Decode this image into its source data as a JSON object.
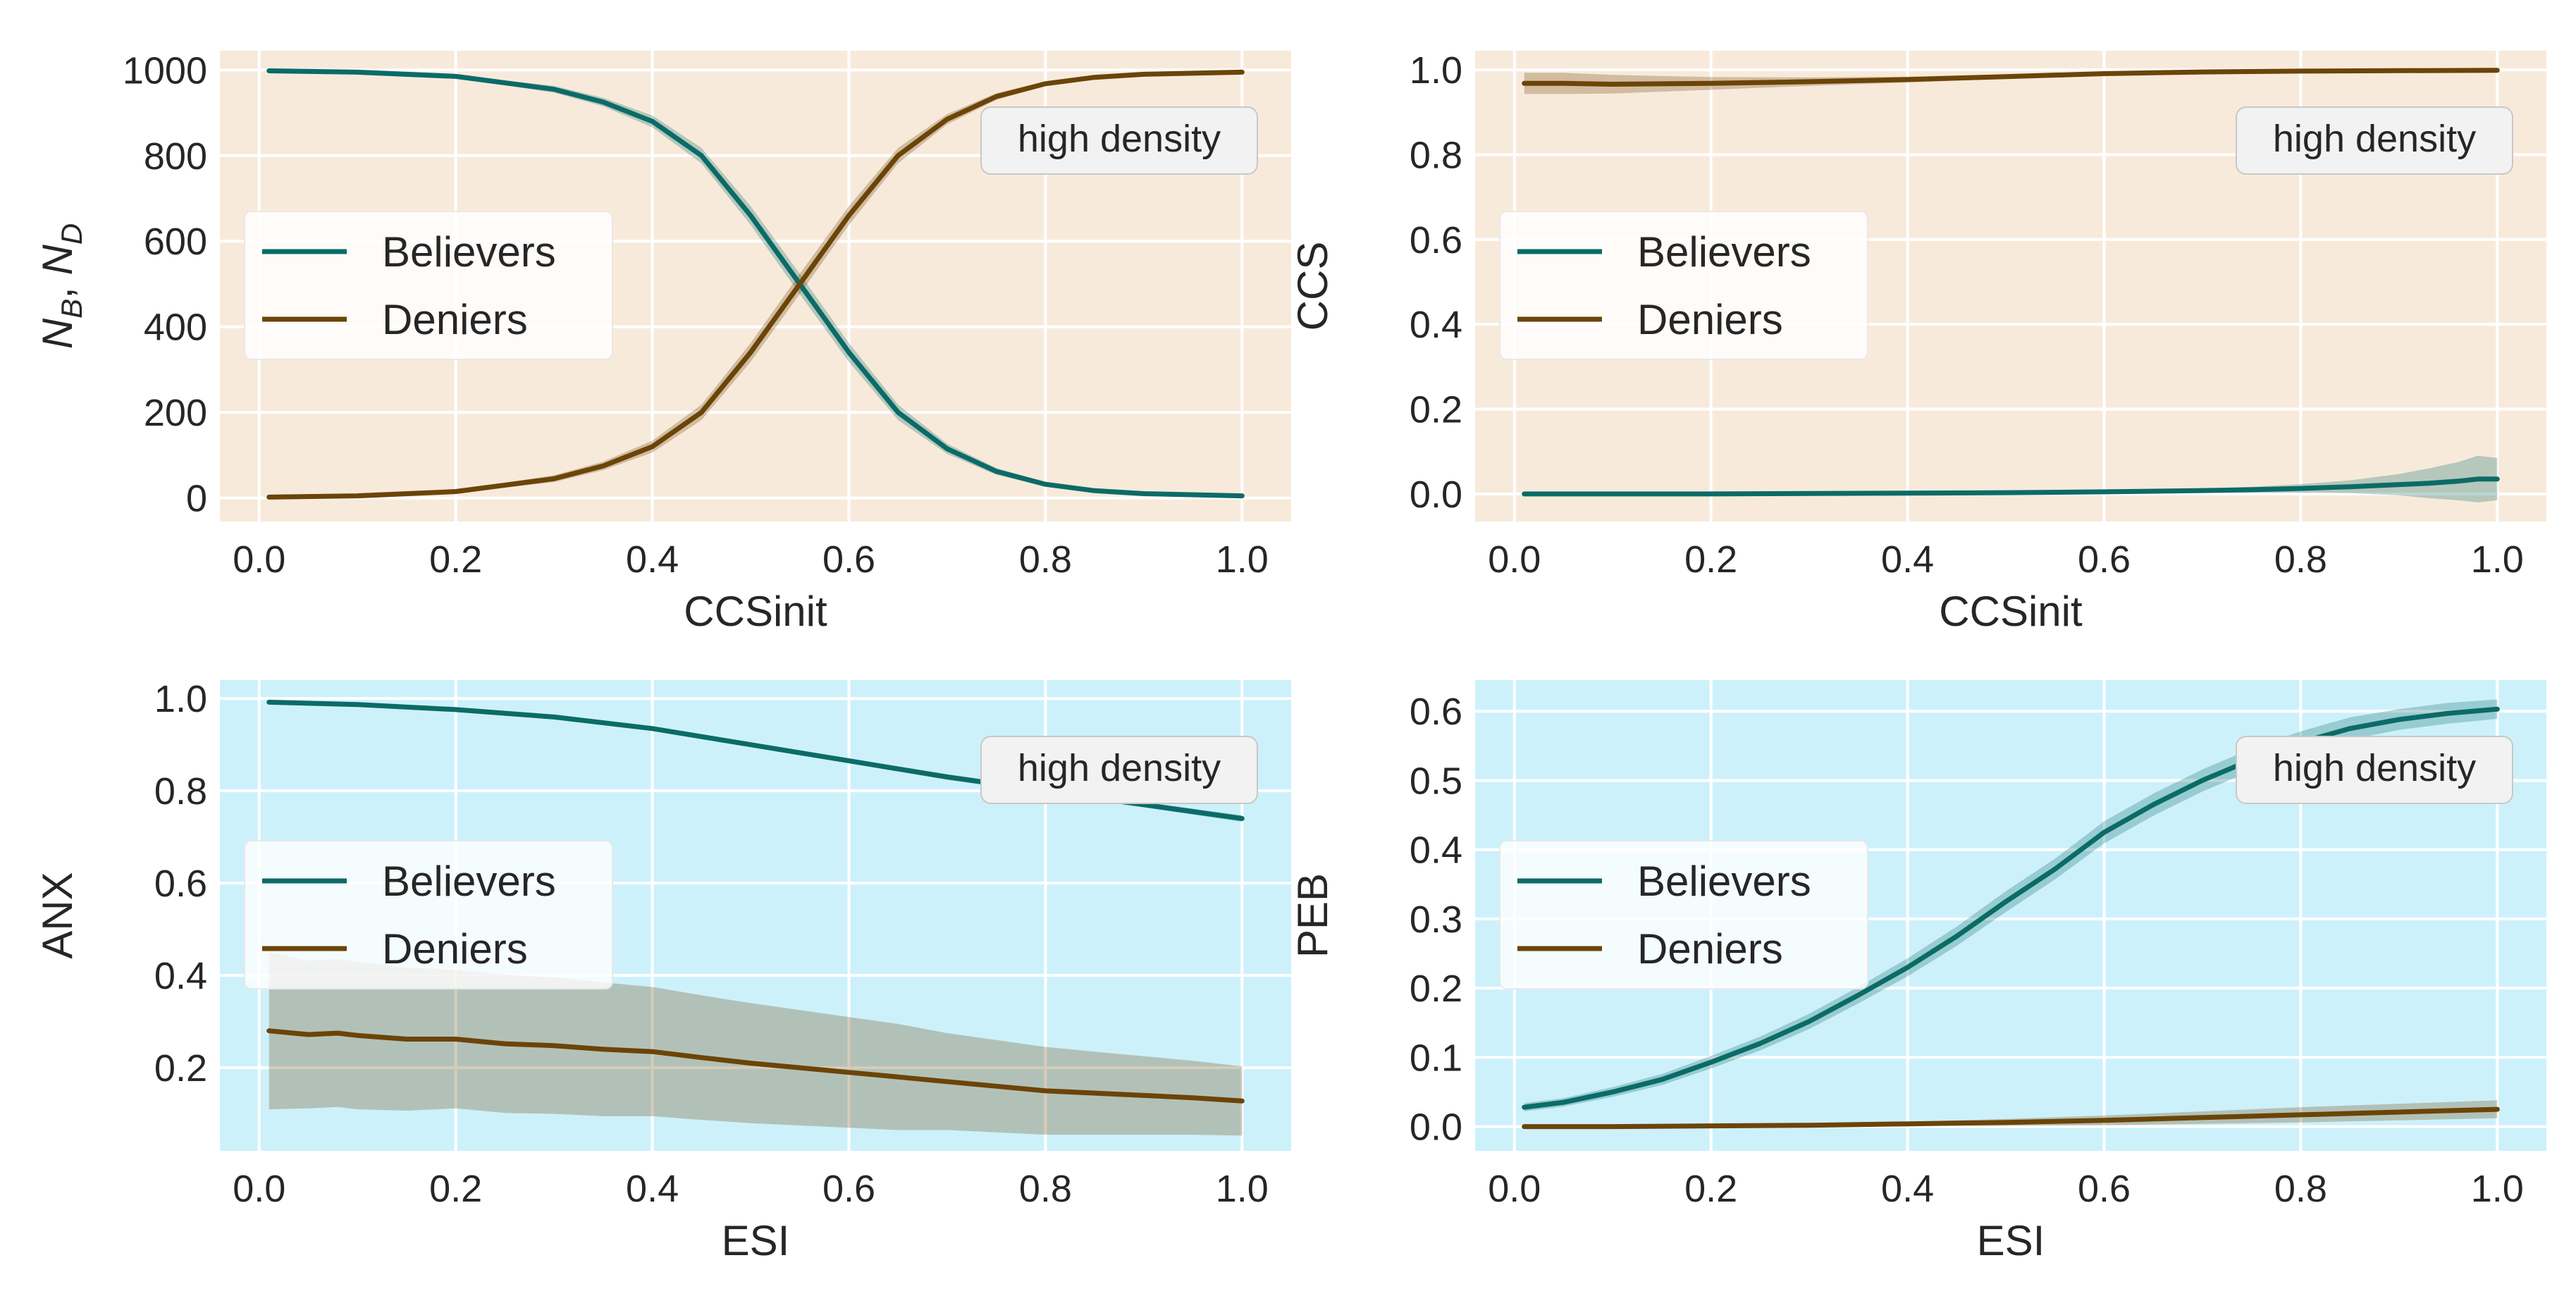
{
  "colors": {
    "believers": "#0b6b67",
    "deniers": "#6b4408",
    "bg_ccsinit": "#f8eadb",
    "bg_esi": "#cdf1fb",
    "annotation_bg": "#f2f2f2"
  },
  "chart_data": [
    {
      "type": "line",
      "panel": "top-left",
      "xlabel": "CCSinit",
      "ylabel_parts": [
        "N",
        "B",
        ", ",
        "N",
        "D"
      ],
      "xlim": [
        -0.04,
        1.05
      ],
      "ylim": [
        -55,
        1045
      ],
      "xticks": [
        0.0,
        0.2,
        0.4,
        0.6,
        0.8,
        1.0
      ],
      "xtick_labels": [
        "0.0",
        "0.2",
        "0.4",
        "0.6",
        "0.8",
        "1.0"
      ],
      "yticks": [
        0,
        200,
        400,
        600,
        800,
        1000
      ],
      "ytick_labels": [
        "0",
        "200",
        "400",
        "600",
        "800",
        "1000"
      ],
      "background": "ccsinit",
      "legend": [
        "Believers",
        "Deniers"
      ],
      "legend_position": "center-left",
      "annotation": "high density",
      "series": [
        {
          "name": "Believers",
          "x": [
            0.01,
            0.1,
            0.2,
            0.3,
            0.35,
            0.4,
            0.45,
            0.5,
            0.55,
            0.6,
            0.65,
            0.7,
            0.75,
            0.8,
            0.85,
            0.9,
            1.0
          ],
          "y": [
            998,
            995,
            985,
            955,
            925,
            880,
            800,
            660,
            500,
            340,
            200,
            115,
            62,
            32,
            17,
            10,
            5
          ],
          "band": [
            0,
            1,
            3,
            8,
            10,
            14,
            18,
            22,
            24,
            22,
            18,
            12,
            8,
            5,
            3,
            2,
            1
          ]
        },
        {
          "name": "Deniers",
          "x": [
            0.01,
            0.1,
            0.2,
            0.3,
            0.35,
            0.4,
            0.45,
            0.5,
            0.55,
            0.6,
            0.65,
            0.7,
            0.75,
            0.8,
            0.85,
            0.9,
            1.0
          ],
          "y": [
            2,
            5,
            15,
            45,
            75,
            120,
            200,
            340,
            500,
            660,
            800,
            885,
            938,
            968,
            983,
            990,
            995
          ],
          "band": [
            0,
            1,
            3,
            8,
            10,
            14,
            18,
            22,
            24,
            22,
            18,
            12,
            8,
            5,
            3,
            2,
            1
          ]
        }
      ]
    },
    {
      "type": "line",
      "panel": "top-right",
      "xlabel": "CCSinit",
      "ylabel": "CCS",
      "xlim": [
        -0.04,
        1.05
      ],
      "ylim": [
        -0.065,
        1.045
      ],
      "xticks": [
        0.0,
        0.2,
        0.4,
        0.6,
        0.8,
        1.0
      ],
      "xtick_labels": [
        "0.0",
        "0.2",
        "0.4",
        "0.6",
        "0.8",
        "1.0"
      ],
      "yticks": [
        0.0,
        0.2,
        0.4,
        0.6,
        0.8,
        1.0
      ],
      "ytick_labels": [
        "0.0",
        "0.2",
        "0.4",
        "0.6",
        "0.8",
        "1.0"
      ],
      "background": "ccsinit",
      "legend": [
        "Believers",
        "Deniers"
      ],
      "legend_position": "center-left",
      "annotation": "high density",
      "series": [
        {
          "name": "Believers",
          "x": [
            0.01,
            0.1,
            0.2,
            0.3,
            0.4,
            0.5,
            0.6,
            0.7,
            0.75,
            0.8,
            0.85,
            0.9,
            0.93,
            0.96,
            0.98,
            1.0
          ],
          "y": [
            0.0,
            0.0,
            0.0,
            0.001,
            0.002,
            0.003,
            0.005,
            0.008,
            0.01,
            0.013,
            0.017,
            0.022,
            0.025,
            0.03,
            0.035,
            0.035
          ],
          "band": [
            0,
            0,
            0,
            0,
            0.001,
            0.002,
            0.003,
            0.005,
            0.007,
            0.01,
            0.015,
            0.025,
            0.035,
            0.045,
            0.055,
            0.05
          ]
        },
        {
          "name": "Deniers",
          "x": [
            0.01,
            0.05,
            0.1,
            0.2,
            0.3,
            0.4,
            0.5,
            0.6,
            0.7,
            0.8,
            0.9,
            1.0
          ],
          "y": [
            0.968,
            0.968,
            0.966,
            0.968,
            0.972,
            0.977,
            0.984,
            0.991,
            0.995,
            0.997,
            0.998,
            0.999
          ],
          "band": [
            0.025,
            0.025,
            0.022,
            0.015,
            0.01,
            0.007,
            0.005,
            0.003,
            0.002,
            0.002,
            0.001,
            0.001
          ]
        }
      ]
    },
    {
      "type": "line",
      "panel": "bottom-left",
      "xlabel": "ESI",
      "ylabel": "ANX",
      "xlim": [
        -0.04,
        1.05
      ],
      "ylim": [
        0.02,
        1.04
      ],
      "xticks": [
        0.0,
        0.2,
        0.4,
        0.6,
        0.8,
        1.0
      ],
      "xtick_labels": [
        "0.0",
        "0.2",
        "0.4",
        "0.6",
        "0.8",
        "1.0"
      ],
      "yticks": [
        0.2,
        0.4,
        0.6,
        0.8,
        1.0
      ],
      "ytick_labels": [
        "0.2",
        "0.4",
        "0.6",
        "0.8",
        "1.0"
      ],
      "background": "esi",
      "legend": [
        "Believers",
        "Deniers"
      ],
      "legend_position": "center-left",
      "annotation": "high density",
      "series": [
        {
          "name": "Believers",
          "x": [
            0.01,
            0.1,
            0.2,
            0.3,
            0.4,
            0.5,
            0.6,
            0.7,
            0.8,
            0.9,
            1.0
          ],
          "y": [
            0.992,
            0.987,
            0.976,
            0.96,
            0.935,
            0.9,
            0.865,
            0.83,
            0.8,
            0.77,
            0.74
          ],
          "band": [
            0.003,
            0.003,
            0.003,
            0.004,
            0.004,
            0.005,
            0.005,
            0.006,
            0.006,
            0.006,
            0.007
          ]
        },
        {
          "name": "Deniers",
          "x": [
            0.01,
            0.05,
            0.08,
            0.1,
            0.15,
            0.2,
            0.25,
            0.3,
            0.35,
            0.4,
            0.45,
            0.5,
            0.55,
            0.6,
            0.65,
            0.7,
            0.75,
            0.8,
            0.85,
            0.9,
            0.95,
            1.0
          ],
          "y": [
            0.28,
            0.272,
            0.275,
            0.27,
            0.262,
            0.262,
            0.252,
            0.248,
            0.24,
            0.235,
            0.222,
            0.21,
            0.2,
            0.19,
            0.18,
            0.17,
            0.16,
            0.15,
            0.145,
            0.14,
            0.135,
            0.128
          ],
          "band": [
            0.17,
            0.16,
            0.16,
            0.16,
            0.155,
            0.15,
            0.15,
            0.148,
            0.145,
            0.14,
            0.135,
            0.13,
            0.125,
            0.12,
            0.115,
            0.105,
            0.1,
            0.095,
            0.09,
            0.085,
            0.08,
            0.075
          ]
        }
      ]
    },
    {
      "type": "line",
      "panel": "bottom-right",
      "xlabel": "ESI",
      "ylabel": "PEB",
      "xlim": [
        -0.04,
        1.05
      ],
      "ylim": [
        -0.035,
        0.645
      ],
      "xticks": [
        0.0,
        0.2,
        0.4,
        0.6,
        0.8,
        1.0
      ],
      "xtick_labels": [
        "0.0",
        "0.2",
        "0.4",
        "0.6",
        "0.8",
        "1.0"
      ],
      "yticks": [
        0.0,
        0.1,
        0.2,
        0.3,
        0.4,
        0.5,
        0.6
      ],
      "ytick_labels": [
        "0.0",
        "0.1",
        "0.2",
        "0.3",
        "0.4",
        "0.5",
        "0.6"
      ],
      "background": "esi",
      "legend": [
        "Believers",
        "Deniers"
      ],
      "legend_position": "center-left",
      "annotation": "high density",
      "series": [
        {
          "name": "Believers",
          "x": [
            0.01,
            0.05,
            0.1,
            0.15,
            0.2,
            0.25,
            0.3,
            0.35,
            0.4,
            0.45,
            0.5,
            0.55,
            0.6,
            0.65,
            0.7,
            0.75,
            0.8,
            0.85,
            0.9,
            0.95,
            1.0
          ],
          "y": [
            0.028,
            0.035,
            0.05,
            0.068,
            0.093,
            0.12,
            0.152,
            0.19,
            0.23,
            0.275,
            0.325,
            0.372,
            0.425,
            0.465,
            0.5,
            0.53,
            0.555,
            0.575,
            0.588,
            0.597,
            0.603
          ],
          "band": [
            0.006,
            0.006,
            0.007,
            0.008,
            0.009,
            0.01,
            0.011,
            0.012,
            0.013,
            0.014,
            0.015,
            0.015,
            0.016,
            0.016,
            0.016,
            0.016,
            0.016,
            0.016,
            0.015,
            0.015,
            0.014
          ]
        },
        {
          "name": "Deniers",
          "x": [
            0.01,
            0.1,
            0.2,
            0.3,
            0.4,
            0.5,
            0.6,
            0.7,
            0.8,
            0.9,
            1.0
          ],
          "y": [
            0.0,
            0.0,
            0.001,
            0.002,
            0.004,
            0.006,
            0.009,
            0.013,
            0.017,
            0.021,
            0.025
          ],
          "band": [
            0.0,
            0.0,
            0.001,
            0.002,
            0.003,
            0.005,
            0.007,
            0.009,
            0.011,
            0.012,
            0.013
          ]
        }
      ]
    }
  ]
}
